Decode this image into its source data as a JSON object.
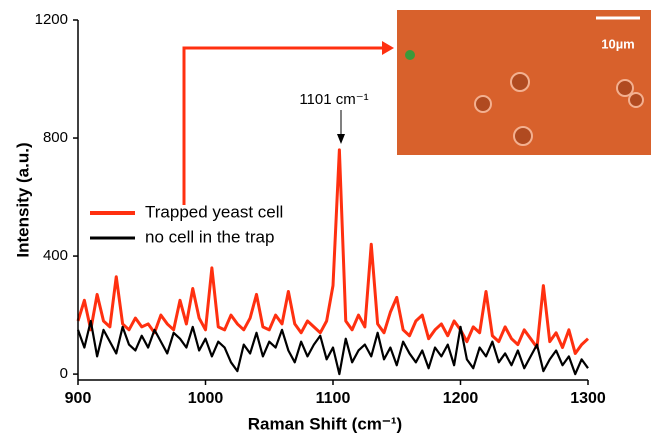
{
  "chart_data": {
    "type": "line",
    "xlabel": "Raman Shift (cm⁻¹)",
    "ylabel": "Intensity (a.u.)",
    "annotation": "1101 cm⁻¹",
    "inset_scale_label": "10µm",
    "xlim": [
      900,
      1300
    ],
    "xticks": [
      900,
      1000,
      1100,
      1200,
      1300
    ],
    "ylim": [
      -20,
      1200
    ],
    "yticks": [
      0,
      400,
      800,
      1200
    ],
    "x": [
      900,
      905,
      910,
      915,
      920,
      925,
      930,
      935,
      940,
      945,
      950,
      955,
      960,
      965,
      970,
      975,
      980,
      985,
      990,
      995,
      1000,
      1005,
      1010,
      1015,
      1020,
      1025,
      1030,
      1035,
      1040,
      1045,
      1050,
      1055,
      1060,
      1065,
      1070,
      1075,
      1080,
      1085,
      1090,
      1095,
      1100,
      1105,
      1110,
      1115,
      1120,
      1125,
      1130,
      1135,
      1140,
      1145,
      1150,
      1155,
      1160,
      1165,
      1170,
      1175,
      1180,
      1185,
      1190,
      1195,
      1200,
      1205,
      1210,
      1215,
      1220,
      1225,
      1230,
      1235,
      1240,
      1245,
      1250,
      1255,
      1260,
      1265,
      1270,
      1275,
      1280,
      1285,
      1290,
      1295,
      1300
    ],
    "series": [
      {
        "name": "Trapped yeast cell",
        "color": "#ff3010",
        "values": [
          180,
          250,
          150,
          270,
          180,
          160,
          330,
          170,
          150,
          190,
          160,
          170,
          140,
          200,
          170,
          150,
          250,
          170,
          290,
          190,
          150,
          360,
          160,
          150,
          200,
          170,
          150,
          190,
          270,
          160,
          150,
          200,
          170,
          280,
          170,
          140,
          180,
          160,
          140,
          180,
          300,
          760,
          180,
          150,
          200,
          160,
          440,
          170,
          140,
          210,
          260,
          150,
          130,
          180,
          200,
          120,
          150,
          170,
          130,
          180,
          150,
          110,
          160,
          140,
          280,
          130,
          110,
          160,
          120,
          100,
          150,
          120,
          90,
          300,
          110,
          140,
          90,
          150,
          70,
          100,
          120
        ]
      },
      {
        "name": "no cell in the trap",
        "color": "#000000",
        "values": [
          150,
          90,
          180,
          60,
          150,
          110,
          70,
          160,
          100,
          80,
          130,
          90,
          150,
          110,
          70,
          140,
          120,
          90,
          160,
          80,
          120,
          60,
          110,
          90,
          40,
          10,
          100,
          70,
          140,
          60,
          110,
          90,
          150,
          80,
          40,
          110,
          60,
          100,
          130,
          50,
          90,
          0,
          120,
          40,
          80,
          100,
          60,
          140,
          50,
          90,
          30,
          110,
          70,
          40,
          80,
          20,
          90,
          60,
          100,
          30,
          160,
          50,
          20,
          90,
          60,
          110,
          40,
          70,
          30,
          80,
          20,
          60,
          100,
          10,
          50,
          80,
          30,
          60,
          0,
          50,
          20
        ]
      }
    ],
    "legend": "center-left"
  }
}
